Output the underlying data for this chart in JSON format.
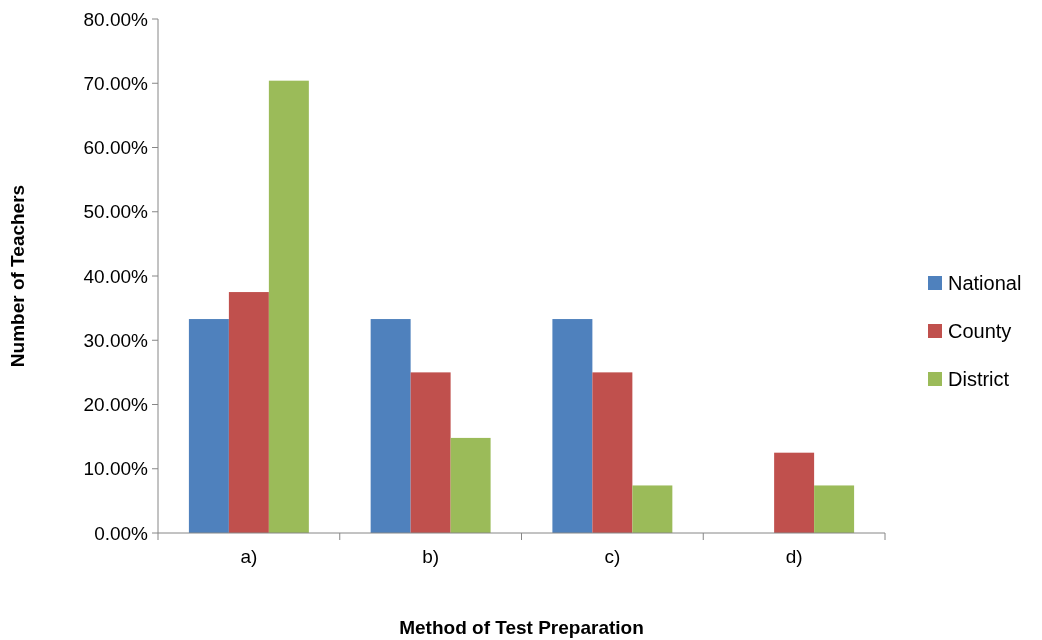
{
  "chart_data": {
    "type": "bar",
    "xlabel": "Method of Test Preparation",
    "ylabel": "Number of Teachers",
    "categories": [
      "a)",
      "b)",
      "c)",
      "d)"
    ],
    "series": [
      {
        "name": "National",
        "color": "#4f81bd",
        "values": [
          33.3,
          33.3,
          33.3,
          0
        ]
      },
      {
        "name": "County",
        "color": "#c0504d",
        "values": [
          37.5,
          25,
          25,
          12.5
        ]
      },
      {
        "name": "District",
        "color": "#9bbb59",
        "values": [
          70.4,
          14.8,
          7.4,
          7.4
        ]
      }
    ],
    "ylim": [
      0,
      80
    ],
    "yticks": [
      {
        "value": 0,
        "label": "0.00%"
      },
      {
        "value": 10,
        "label": "10.00%"
      },
      {
        "value": 20,
        "label": "20.00%"
      },
      {
        "value": 30,
        "label": "30.00%"
      },
      {
        "value": 40,
        "label": "40.00%"
      },
      {
        "value": 50,
        "label": "50.00%"
      },
      {
        "value": 60,
        "label": "60.00%"
      },
      {
        "value": 70,
        "label": "70.00%"
      },
      {
        "value": 80,
        "label": "80.00%"
      }
    ],
    "grid": false,
    "legend": "right"
  }
}
